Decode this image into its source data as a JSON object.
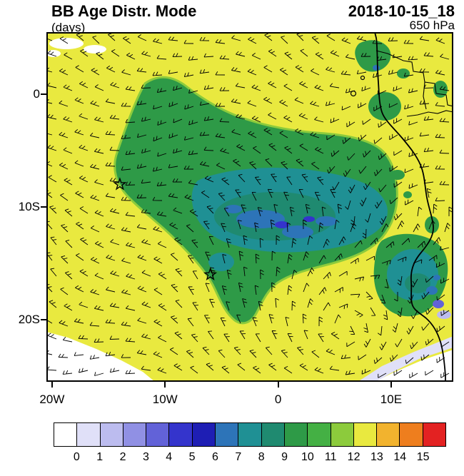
{
  "header": {
    "title": "BB Age Distr. Mode",
    "timestamp": "2018-10-15_18",
    "units_label": "(days)",
    "level_label": "650 hPa"
  },
  "chart_data": {
    "type": "heatmap",
    "title": "BB Age Distr. Mode",
    "valid_time": "2018-10-15_18",
    "units": "days",
    "pressure_level": "650 hPa",
    "x_axis": {
      "tick_labels": [
        "20W",
        "10W",
        "0",
        "10E"
      ],
      "tick_lons_deg": [
        -20,
        -10,
        0,
        10
      ],
      "range_deg": [
        -20.5,
        15.5
      ]
    },
    "y_axis": {
      "tick_labels": [
        "0",
        "10S",
        "20S"
      ],
      "tick_lats_deg": [
        0,
        -10,
        -20
      ],
      "range_deg": [
        -25.5,
        5.5
      ]
    },
    "colorbar": {
      "orientation": "horizontal",
      "tick_labels": [
        "0",
        "1",
        "2",
        "3",
        "4",
        "5",
        "6",
        "7",
        "8",
        "9",
        "10",
        "11",
        "12",
        "13",
        "14",
        "15"
      ],
      "colors": [
        "#FFFFFF",
        "#E0E0F8",
        "#BCBCEF",
        "#9090E4",
        "#6262D8",
        "#3434CC",
        "#1E1EB4",
        "#2D74B8",
        "#1F9094",
        "#1F8A70",
        "#2E9A47",
        "#44B044",
        "#8CCB3C",
        "#E9E93F",
        "#F2B32E",
        "#EE7E1E",
        "#E32222"
      ],
      "region_color_indices": {
        "background": 13,
        "plume_green": 10,
        "plume_fringe": 12,
        "core_dark": 9,
        "core_teal": 8,
        "core_blue": 7,
        "deep_blue_specks": 5,
        "clean_white": 0,
        "clean_lavender": 1
      }
    },
    "field_summary": {
      "background_mode_days": 12,
      "smoke_plume_mode_days": 10,
      "plume_core_mode_days": 8,
      "core_patches_mode_days": 6,
      "clean_corner_regions_days": 0
    },
    "markers": [
      {
        "symbol": "star",
        "lon": "14W",
        "lat": "8S",
        "lon_deg": -14,
        "lat_deg": -8
      },
      {
        "symbol": "star",
        "lon": "6W",
        "lat": "16S",
        "lon_deg": -6,
        "lat_deg": -16
      }
    ],
    "overlays": [
      "wind barbs",
      "African west coastline",
      "country borders",
      "island outlines"
    ]
  }
}
